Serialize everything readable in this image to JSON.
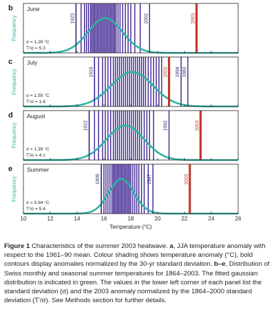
{
  "chart_data": {
    "type": "histogram",
    "xlabel": "Temperature (°C)",
    "ylabel": "Frequency",
    "xlim": [
      10,
      26
    ],
    "xticks": [
      10,
      12,
      14,
      16,
      18,
      20,
      22,
      24,
      26
    ],
    "colors": {
      "bars": "#3a1f8e",
      "gaussian": "#2db3a3",
      "year2003": "#c0392b",
      "axis": "#231f20"
    },
    "panels": [
      {
        "letter": "b",
        "name": "June",
        "sigma_text": "σ = 1.28 °C",
        "ratio_text": "T'/σ = 5.3",
        "mean": 16.1,
        "sigma": 1.28,
        "years": [
          13.92,
          14.3,
          14.55,
          14.7,
          14.85,
          15.0,
          15.1,
          15.2,
          15.3,
          15.4,
          15.5,
          15.6,
          15.7,
          15.8,
          15.9,
          16.0,
          16.1,
          16.2,
          16.3,
          16.4,
          16.5,
          16.6,
          16.7,
          16.8,
          16.9,
          17.05,
          17.2,
          17.4,
          17.6,
          17.8,
          18.0,
          18.3,
          18.7
        ],
        "labels": [
          {
            "text": "1923",
            "x": 13.92
          },
          {
            "text": "2002",
            "x": 19.4
          },
          {
            "text": "2003",
            "x": 22.9,
            "highlight": true
          }
        ]
      },
      {
        "letter": "c",
        "name": "July",
        "sigma_text": "σ = 1.55 °C",
        "ratio_text": "T'/σ = 1.6",
        "mean": 18.1,
        "sigma": 1.55,
        "years": [
          15.3,
          15.6,
          15.9,
          16.1,
          16.3,
          16.5,
          16.7,
          16.85,
          17.0,
          17.15,
          17.3,
          17.45,
          17.6,
          17.75,
          17.9,
          18.05,
          18.2,
          18.35,
          18.5,
          18.65,
          18.8,
          18.95,
          19.1,
          19.3,
          19.5,
          19.7,
          19.9,
          20.1,
          20.3
        ],
        "labels": [
          {
            "text": "1919",
            "x": 15.3
          },
          {
            "text": "2003",
            "x": 20.85,
            "highlight": true
          },
          {
            "text": "1994",
            "x": 21.75
          },
          {
            "text": "1983",
            "x": 22.25
          }
        ]
      },
      {
        "letter": "d",
        "name": "August",
        "sigma_text": "σ = 1.39 °C",
        "ratio_text": "T'/σ = 4.1",
        "mean": 17.6,
        "sigma": 1.39,
        "years": [
          14.9,
          15.3,
          15.6,
          15.9,
          16.1,
          16.3,
          16.5,
          16.7,
          16.85,
          17.0,
          17.15,
          17.3,
          17.45,
          17.6,
          17.75,
          17.9,
          18.05,
          18.2,
          18.35,
          18.5,
          18.65,
          18.8,
          19.0,
          19.2,
          19.4,
          19.7
        ],
        "labels": [
          {
            "text": "1912",
            "x": 14.9
          },
          {
            "text": "1992",
            "x": 20.85
          },
          {
            "text": "2003",
            "x": 23.2,
            "highlight": true
          }
        ]
      },
      {
        "letter": "e",
        "name": "Summer",
        "sigma_text": "σ = 0.94 °C",
        "ratio_text": "T'/σ = 5.4",
        "mean": 17.3,
        "sigma": 0.94,
        "years": [
          15.8,
          16.0,
          16.15,
          16.3,
          16.45,
          16.6,
          16.7,
          16.8,
          16.9,
          17.0,
          17.1,
          17.2,
          17.3,
          17.4,
          17.5,
          17.6,
          17.7,
          17.8,
          17.9,
          18.0,
          18.15,
          18.3,
          18.45,
          18.6,
          18.8,
          19.0,
          19.3
        ],
        "labels": [
          {
            "text": "1909",
            "x": 15.8
          },
          {
            "text": "1947",
            "x": 19.65
          },
          {
            "text": "2003",
            "x": 22.4,
            "highlight": true
          }
        ]
      }
    ]
  },
  "caption": {
    "label": "Figure 1",
    "intro": " Characteristics of the summer 2003 heatwave. ",
    "a": "a",
    "a_text": ", JJA temperature anomaly with respect to the 1961–90 mean. Colour shading shows temperature anomaly (°C), bold contours display anomalies normalized by the 30-yr standard deviation. ",
    "be": "b–e",
    "be_text": ", Distribution of Swiss monthly and seasonal summer temperatures for 1864–2003. The fitted gaussian distribution is indicated in green. The values in the lower left corner of each panel list the standard deviation (σ) and the 2003 anomaly normalized by the 1864–2000 standard deviation (T'/σ). See Methods section for further details."
  }
}
